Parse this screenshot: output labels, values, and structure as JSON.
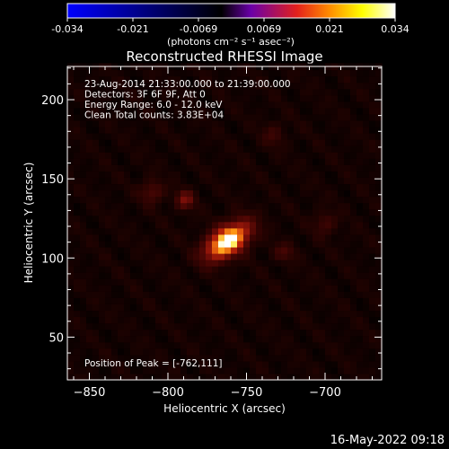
{
  "chart_data": {
    "type": "heatmap",
    "title": "Reconstructed RHESSI Image",
    "xlabel": "Heliocentric X (arcsec)",
    "ylabel": "Heliocentric Y (arcsec)",
    "xlim": [
      -864,
      -664
    ],
    "ylim": [
      23,
      221
    ],
    "xticks": [
      -850,
      -800,
      -750,
      -700
    ],
    "yticks": [
      50,
      100,
      150,
      200
    ],
    "colorbar": {
      "label": "(photons cm⁻² s⁻¹ asec⁻²)",
      "range": [
        -0.034,
        0.034
      ],
      "ticks": [
        "-0.034",
        "-0.021",
        "-0.0069",
        "0.0069",
        "0.021",
        "0.034"
      ],
      "colormap": [
        "#0000ff",
        "#000000",
        "#6a00a8",
        "#e2201c",
        "#ff8c00",
        "#ffff00",
        "#ffffff"
      ]
    },
    "annotations": [
      "23-Aug-2014 21:33:00.000 to 21:39:00.000",
      "Detectors: 3F 6F 9F, Att 0",
      "Energy Range: 6.0 - 12.0 keV",
      "Clean    Total counts: 3.83E+04",
      "Position of Peak = [-762,111]"
    ],
    "peak": {
      "x": -762,
      "y": 111,
      "value": 0.034
    },
    "sources": [
      {
        "x": -762,
        "y": 111,
        "sx": 11,
        "sy": 6,
        "angle": -35,
        "amp": 0.034
      },
      {
        "x": -789,
        "y": 137,
        "sx": 4,
        "sy": 4,
        "angle": 0,
        "amp": 0.012
      },
      {
        "x": -810,
        "y": 142,
        "sx": 5,
        "sy": 5,
        "angle": 0,
        "amp": 0.008
      },
      {
        "x": -726,
        "y": 104,
        "sx": 5,
        "sy": 4,
        "angle": 0,
        "amp": 0.006
      },
      {
        "x": -700,
        "y": 122,
        "sx": 5,
        "sy": 5,
        "angle": 0,
        "amp": 0.006
      },
      {
        "x": -733,
        "y": 178,
        "sx": 5,
        "sy": 5,
        "angle": 0,
        "amp": 0.005
      }
    ],
    "background_level": 0.004
  },
  "footer": {
    "timestamp": "16-May-2022 09:18"
  }
}
